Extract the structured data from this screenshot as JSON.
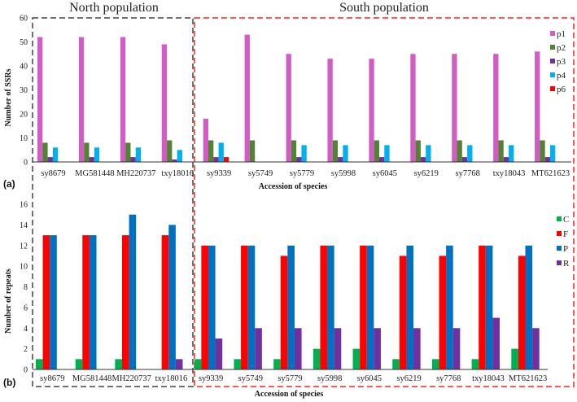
{
  "groups": {
    "north": "North population",
    "south": "South population"
  },
  "chart_data": [
    {
      "type": "bar",
      "panel": "(a)",
      "xlabel": "Accession of species",
      "ylabel": "Number of SSRs",
      "ylim": [
        0,
        60
      ],
      "yticks": [
        0,
        10,
        20,
        30,
        40,
        50,
        60
      ],
      "categories": [
        "sy8679",
        "MG581448",
        "MH220737",
        "txy18016",
        "sy9339",
        "sy5749",
        "sy5779",
        "sy5998",
        "sy6045",
        "sy6219",
        "sy7768",
        "txy18043",
        "MT621623"
      ],
      "legend_position": "right",
      "series": [
        {
          "name": "p1",
          "color": "#d05cc4",
          "values": [
            52,
            52,
            52,
            49,
            18,
            53,
            45,
            43,
            43,
            45,
            45,
            45,
            46
          ]
        },
        {
          "name": "p2",
          "color": "#548235",
          "values": [
            8,
            8,
            8,
            9,
            9,
            9,
            9,
            9,
            9,
            9,
            9,
            9,
            9
          ]
        },
        {
          "name": "p3",
          "color": "#7030a0",
          "values": [
            2,
            2,
            2,
            1,
            2,
            0,
            2,
            2,
            2,
            2,
            2,
            2,
            2
          ]
        },
        {
          "name": "p4",
          "color": "#00b0f0",
          "values": [
            6,
            6,
            6,
            5,
            8,
            0,
            7,
            7,
            7,
            7,
            7,
            7,
            7
          ]
        },
        {
          "name": "p6",
          "color": "#ff0000",
          "values": [
            0,
            0,
            0,
            0,
            2,
            0,
            0,
            0,
            0,
            0,
            0,
            0,
            0
          ]
        }
      ]
    },
    {
      "type": "bar",
      "panel": "(b)",
      "xlabel": "Accession of species",
      "ylabel": "Number of repeats",
      "ylim": [
        0,
        16
      ],
      "yticks": [
        0,
        2,
        4,
        6,
        8,
        10,
        12,
        14,
        16
      ],
      "categories": [
        "sy8679",
        "MG581448",
        "MH220737",
        "txy18016",
        "sy9339",
        "sy5749",
        "sy5779",
        "sy5998",
        "sy6045",
        "sy6219",
        "sy7768",
        "txy18043",
        "MT621623"
      ],
      "legend_position": "right",
      "series": [
        {
          "name": "C",
          "color": "#00b050",
          "values": [
            1,
            1,
            1,
            0,
            1,
            1,
            1,
            2,
            2,
            1,
            1,
            1,
            2
          ]
        },
        {
          "name": "F",
          "color": "#ff0000",
          "values": [
            13,
            13,
            13,
            13,
            12,
            12,
            11,
            12,
            12,
            11,
            11,
            12,
            11
          ]
        },
        {
          "name": "P",
          "color": "#0070c0",
          "values": [
            13,
            13,
            15,
            14,
            12,
            12,
            12,
            12,
            12,
            12,
            12,
            12,
            12
          ]
        },
        {
          "name": "R",
          "color": "#7030a0",
          "values": [
            0,
            0,
            0,
            1,
            3,
            4,
            4,
            4,
            4,
            4,
            4,
            5,
            4
          ]
        }
      ]
    }
  ]
}
